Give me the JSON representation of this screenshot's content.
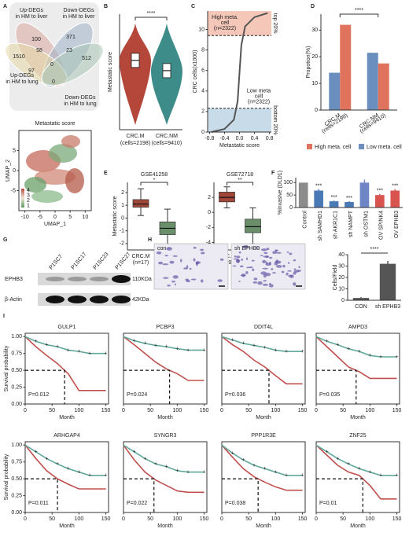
{
  "panel_labels": [
    "A",
    "B",
    "C",
    "D",
    "E",
    "F",
    "G",
    "H",
    "I"
  ],
  "venn": {
    "sets": [
      [
        "Up-DEGs",
        "in HM to liver"
      ],
      [
        "Down-DEGs",
        "in HM to liver"
      ],
      [
        "Up-DEGs",
        "in HM to lung"
      ],
      [
        "Down-DEGs",
        "in HM to lung"
      ]
    ],
    "counts": [
      1510,
      100,
      58,
      371,
      23,
      512,
      97,
      0,
      0
    ]
  },
  "umap": {
    "title": "Metastatic score",
    "xlabel": "UMAP_1",
    "ylabel": "UMAP_2",
    "xlim": [
      -12,
      12
    ],
    "ylim": [
      -10,
      10
    ],
    "xticks": [
      -10,
      -5,
      0,
      5,
      10
    ],
    "yticks": [
      -5,
      0,
      5
    ],
    "legend_ticks": [
      4,
      3,
      2,
      1
    ]
  },
  "blot": {
    "samples": [
      "P1SC7",
      "P1SC17",
      "P1SC23",
      "P1SC27"
    ],
    "rows": [
      {
        "name": "EPHB3",
        "size": "110KDa"
      },
      {
        "name": "β-Actin",
        "size": "42KDa"
      }
    ]
  },
  "images": {
    "labels": [
      "con",
      "sh EPHB3"
    ]
  },
  "chart_data": [
    {
      "type": "violin",
      "ylabel": "Metastatic score",
      "categories": [
        "CRC.M",
        "CRC.NM"
      ],
      "category_notes": [
        "(cells=2198)",
        "(cells=9410)"
      ],
      "colors": [
        "#b5473a",
        "#3d8c8a"
      ],
      "values": [
        1.7,
        1.3
      ],
      "ylim": [
        -1,
        3.5
      ],
      "significance": "****"
    },
    {
      "type": "rank",
      "ylabel": "CRC cells(x1000)",
      "xlabel": "Metastatic score",
      "x": [
        -0.75,
        -0.4,
        -0.15,
        -0.05,
        0,
        0.05,
        0.15,
        0.4,
        0.75
      ],
      "values": [
        0,
        0.3,
        1.2,
        3,
        5.8,
        8.5,
        10.3,
        11.2,
        11.6
      ],
      "xlim": [
        -0.85,
        0.85
      ],
      "xticks": [
        -0.8,
        -0.4,
        {
          "value": 0,
          "label": "0.0"
        },
        0.4,
        0.8
      ],
      "ylim": [
        0,
        11.8
      ],
      "yticks": [
        0,
        2,
        4,
        6,
        8,
        10
      ],
      "thresholds": [
        2.322,
        9.41
      ],
      "high_label": [
        "High meta.",
        "cell",
        "(n=2322)"
      ],
      "low_label": [
        "Low meta",
        "cell",
        "(n=2322)"
      ],
      "top_label": "top 20%",
      "bottom_label": "bottom 20%"
    },
    {
      "type": "grouped_bar",
      "ylabel": "Propotion(%)",
      "categories": [
        "CRC.M",
        "CRC.NM"
      ],
      "category_notes": [
        "(cells=2198)",
        "(cells=9410)"
      ],
      "series": [
        {
          "name": "Low meta. cell",
          "color": "#6a8fbf",
          "values": [
            14,
            21.5
          ]
        },
        {
          "name": "High meta. cell",
          "color": "#e0735e",
          "values": [
            32,
            17.5
          ]
        }
      ],
      "ylim": [
        0,
        36
      ],
      "yticks": [
        0,
        10,
        20,
        30
      ],
      "significance": "****"
    },
    {
      "type": "box",
      "title": "GSE41258",
      "ylabel": "Metastatic score",
      "categories": [
        "CRC.M",
        "CRC.NM"
      ],
      "category_notes": [
        "(n=17)",
        "(n=30)"
      ],
      "colors": [
        "#a0473a",
        "#6b8f6b"
      ],
      "boxes": [
        {
          "low": 0.2,
          "q1": 0.85,
          "median": 1.1,
          "q3": 1.45,
          "high": 2.3
        },
        {
          "low": -2.2,
          "q1": -1.3,
          "median": -0.8,
          "q3": -0.3,
          "high": 0.7
        }
      ],
      "ylim": [
        -2.5,
        2.8
      ],
      "yticks": [
        -2,
        -1,
        0,
        1,
        2
      ],
      "significance": "*"
    },
    {
      "type": "box",
      "title": "GSE72718",
      "categories": [
        "CRC.M",
        "CRC.NM"
      ],
      "category_notes": [
        "(n=9)",
        "(n=10)"
      ],
      "colors": [
        "#a0473a",
        "#6b8f6b"
      ],
      "boxes": [
        {
          "low": 0.6,
          "q1": 1.4,
          "median": 2,
          "q3": 2.7,
          "high": 3.4
        },
        {
          "low": -4.2,
          "q1": -2.7,
          "median": -1.9,
          "q3": -0.9,
          "high": 0.6
        }
      ],
      "ylim": [
        -5,
        4
      ],
      "yticks": [
        -4,
        -2,
        0,
        2
      ],
      "significance": "**"
    },
    {
      "type": "bar",
      "ylabel": "%invasive (DLD1)",
      "categories": [
        "Control",
        "sh SAMHD1",
        "sh AKR1C1",
        "sh NAMPT",
        "sh OSTM1",
        "OV SPINK4",
        "OV EPHB3"
      ],
      "values": [
        100,
        68,
        25,
        22,
        100,
        50,
        68
      ],
      "errors": [
        0,
        6,
        3,
        3,
        12,
        4,
        6
      ],
      "colors": [
        "#8c8c8c",
        "#4a7ab5",
        "#4a7ab5",
        "#4a7ab5",
        "#6f86c6",
        "#d9534f",
        "#d9534f"
      ],
      "significance": [
        null,
        "***",
        "***",
        "***",
        null,
        "***",
        "***"
      ],
      "ylim": [
        0,
        120
      ],
      "yticks": [
        0,
        50,
        100
      ]
    },
    {
      "type": "bar",
      "ylabel": "Cells/Field",
      "categories": [
        "CON",
        "sh EPHB3"
      ],
      "values": [
        2,
        32
      ],
      "errors": [
        0.8,
        2.5
      ],
      "colors": [
        "#555555",
        "#555555"
      ],
      "ylim": [
        0,
        40
      ],
      "yticks": [
        0,
        10,
        20,
        30,
        40
      ],
      "bracket": "****"
    },
    {
      "type": "km",
      "title": "GULP1",
      "xlabel": "Month",
      "ylabel": "Survival probability",
      "p_label": "P=0.012",
      "x": [
        0,
        20,
        40,
        60,
        80,
        100,
        120,
        150
      ],
      "series": [
        {
          "color": "#c0504d",
          "values": [
            1,
            0.85,
            0.72,
            0.6,
            0.45,
            0.2,
            0.2,
            0.2
          ]
        },
        {
          "color": "#5fa89b",
          "values": [
            1,
            0.93,
            0.88,
            0.85,
            0.8,
            0.78,
            0.75,
            0.75
          ]
        }
      ],
      "xlim": [
        0,
        155
      ],
      "xticks": [
        0,
        50,
        100,
        150
      ],
      "ylim": [
        0,
        1.05
      ],
      "yticks": [
        {
          "value": 0,
          "label": "0.00"
        },
        {
          "value": 0.25,
          "label": "0.25"
        },
        {
          "value": 0.5,
          "label": "0.50"
        },
        {
          "value": 0.75,
          "label": "0.75"
        },
        {
          "value": 1,
          "label": "1.00"
        }
      ]
    },
    {
      "type": "km",
      "title": "PCBP3",
      "xlabel": "Month",
      "p_label": "P=0.024",
      "x": [
        0,
        20,
        40,
        60,
        80,
        100,
        120,
        150
      ],
      "series": [
        {
          "color": "#c0504d",
          "values": [
            1,
            0.88,
            0.75,
            0.62,
            0.52,
            0.45,
            0.35,
            0.35
          ]
        },
        {
          "color": "#5fa89b",
          "values": [
            1,
            0.94,
            0.9,
            0.87,
            0.85,
            0.82,
            0.8,
            0.8
          ]
        }
      ],
      "xlim": [
        0,
        155
      ],
      "xticks": [
        0,
        50,
        100,
        150
      ],
      "ylim": [
        0,
        1.05
      ]
    },
    {
      "type": "km",
      "title": "DDIT4L",
      "xlabel": "Month",
      "p_label": "P=0.036",
      "x": [
        0,
        20,
        40,
        60,
        80,
        100,
        120,
        150
      ],
      "series": [
        {
          "color": "#c0504d",
          "values": [
            1,
            0.88,
            0.78,
            0.65,
            0.55,
            0.42,
            0.3,
            0.3
          ]
        },
        {
          "color": "#5fa89b",
          "values": [
            1,
            0.95,
            0.9,
            0.87,
            0.84,
            0.8,
            0.78,
            0.78
          ]
        }
      ],
      "xlim": [
        0,
        155
      ],
      "xticks": [
        0,
        50,
        100,
        150
      ],
      "ylim": [
        0,
        1.05
      ]
    },
    {
      "type": "km",
      "title": "AMPD3",
      "xlabel": "Month",
      "p_label": "P=0.035",
      "x": [
        0,
        20,
        40,
        60,
        80,
        100,
        120,
        150
      ],
      "series": [
        {
          "color": "#c0504d",
          "values": [
            1,
            0.85,
            0.7,
            0.55,
            0.48,
            0.38,
            0.38,
            0.38
          ]
        },
        {
          "color": "#5fa89b",
          "values": [
            1,
            0.93,
            0.88,
            0.82,
            0.78,
            0.72,
            0.7,
            0.7
          ]
        }
      ],
      "xlim": [
        0,
        155
      ],
      "xticks": [
        0,
        50,
        100,
        150
      ],
      "ylim": [
        0,
        1.05
      ]
    },
    {
      "type": "km",
      "title": "ARHGAP4",
      "xlabel": "Month",
      "ylabel": "Survival probability",
      "p_label": "P=0.011",
      "x": [
        0,
        20,
        40,
        60,
        80,
        100,
        120,
        150
      ],
      "series": [
        {
          "color": "#c0504d",
          "values": [
            1,
            0.8,
            0.62,
            0.5,
            0.42,
            0.35,
            0.35,
            0.35
          ]
        },
        {
          "color": "#5fa89b",
          "values": [
            1,
            0.9,
            0.8,
            0.72,
            0.65,
            0.6,
            0.55,
            0.55
          ]
        }
      ],
      "xlim": [
        0,
        155
      ],
      "xticks": [
        0,
        50,
        100,
        150
      ],
      "ylim": [
        0,
        1.05
      ],
      "yticks": [
        {
          "value": 0,
          "label": "0.00"
        },
        {
          "value": 0.25,
          "label": "0.25"
        },
        {
          "value": 0.5,
          "label": "0.50"
        },
        {
          "value": 0.75,
          "label": "0.75"
        },
        {
          "value": 1,
          "label": "1.00"
        }
      ]
    },
    {
      "type": "km",
      "title": "SYNGR3",
      "xlabel": "Month",
      "p_label": "P=0.022",
      "x": [
        0,
        20,
        40,
        60,
        80,
        100,
        120,
        150
      ],
      "series": [
        {
          "color": "#c0504d",
          "values": [
            1,
            0.78,
            0.6,
            0.48,
            0.4,
            0.32,
            0.3,
            0.3
          ]
        },
        {
          "color": "#5fa89b",
          "values": [
            1,
            0.9,
            0.8,
            0.72,
            0.68,
            0.62,
            0.6,
            0.6
          ]
        }
      ],
      "xlim": [
        0,
        155
      ],
      "xticks": [
        0,
        50,
        100,
        150
      ],
      "ylim": [
        0,
        1.05
      ]
    },
    {
      "type": "km",
      "title": "PPP1R3E",
      "xlabel": "Month",
      "p_label": "P=0.038",
      "x": [
        0,
        20,
        40,
        60,
        80,
        100,
        120,
        150
      ],
      "series": [
        {
          "color": "#c0504d",
          "values": [
            1,
            0.82,
            0.65,
            0.53,
            0.45,
            0.38,
            0.33,
            0.33
          ]
        },
        {
          "color": "#5fa89b",
          "values": [
            1,
            0.88,
            0.78,
            0.7,
            0.65,
            0.6,
            0.55,
            0.55
          ]
        }
      ],
      "xlim": [
        0,
        155
      ],
      "xticks": [
        0,
        50,
        100,
        150
      ],
      "ylim": [
        0,
        1.05
      ]
    },
    {
      "type": "km",
      "title": "ZNF25",
      "xlabel": "Month",
      "p_label": "P=0.01",
      "x": [
        0,
        20,
        40,
        60,
        80,
        100,
        120,
        150
      ],
      "series": [
        {
          "color": "#c0504d",
          "values": [
            1,
            0.85,
            0.7,
            0.6,
            0.55,
            0.4,
            0.2,
            0.2
          ]
        },
        {
          "color": "#5fa89b",
          "values": [
            1,
            0.9,
            0.8,
            0.72,
            0.65,
            0.6,
            0.55,
            0.55
          ]
        }
      ],
      "xlim": [
        0,
        155
      ],
      "xticks": [
        0,
        50,
        100,
        150
      ],
      "ylim": [
        0,
        1.05
      ]
    }
  ]
}
